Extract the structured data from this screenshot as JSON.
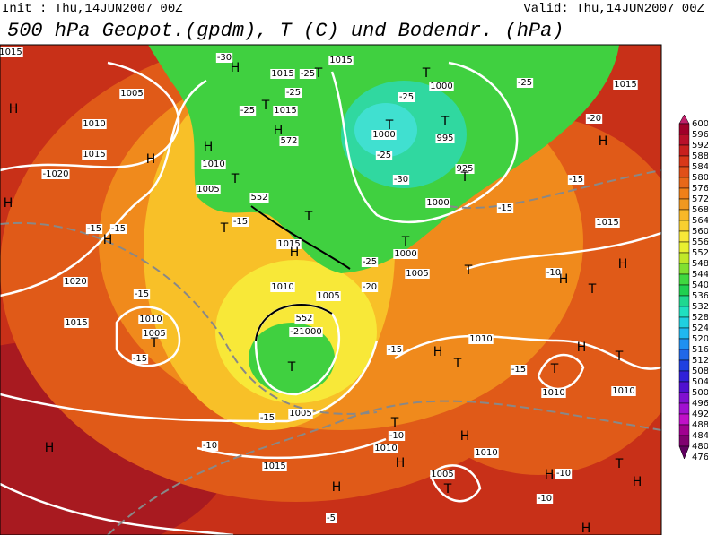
{
  "header": {
    "init": "Init : Thu,14JUN2007 00Z",
    "valid": "Valid: Thu,14JUN2007 00Z",
    "title": "500 hPa Geopot.(gpdm), T (C) und Bodendr. (hPa)"
  },
  "colorbar": {
    "levels": [
      600,
      596,
      592,
      588,
      584,
      580,
      576,
      572,
      568,
      564,
      560,
      556,
      552,
      548,
      544,
      540,
      536,
      532,
      528,
      524,
      520,
      516,
      512,
      508,
      504,
      500,
      496,
      492,
      488,
      484,
      480,
      476
    ],
    "colors": [
      "#c0206a",
      "#a0002a",
      "#b8102a",
      "#c8201e",
      "#d83818",
      "#e05018",
      "#e86818",
      "#f08018",
      "#f09820",
      "#f8b828",
      "#f8d030",
      "#f8e838",
      "#e8f030",
      "#c0e828",
      "#80e030",
      "#40d840",
      "#20d050",
      "#20d890",
      "#20e0c0",
      "#20d0e0",
      "#20b8f0",
      "#2090f0",
      "#2068e8",
      "#2040e0",
      "#3020d8",
      "#5010d0",
      "#8010d0",
      "#a010d0",
      "#c010c8",
      "#a00090",
      "#800070",
      "#600060"
    ]
  },
  "map_labels": [
    "1015",
    "H",
    "1005",
    "1010",
    "1015",
    "H",
    "-1020",
    "H",
    "-15",
    "-15",
    "H",
    "1020",
    "-15",
    "1015",
    "1010",
    "1005",
    "T",
    "-15",
    "-30",
    "H",
    "1015",
    "-25",
    "T",
    "1015",
    "T",
    "1000",
    "-25",
    "1015",
    "-25",
    "T",
    "-25",
    "1015",
    "-25",
    "T",
    "T",
    "1000",
    "995",
    "H",
    "572",
    "H",
    "1010",
    "-25",
    "-20",
    "H",
    "1005",
    "T",
    "552",
    "-30",
    "925",
    "T",
    "-15",
    "1000",
    "-15",
    "-15",
    "T",
    "T",
    "1015",
    "H",
    "T",
    "1000",
    "1015",
    "-25",
    "1005",
    "T",
    "-10",
    "H",
    "H",
    "1010",
    "-20",
    "1005",
    "T",
    "552",
    "-21000",
    "T",
    "1010",
    "-15",
    "H",
    "T",
    "-15",
    "T",
    "H",
    "T",
    "1010",
    "1010",
    "-15",
    "1005",
    "T",
    "-10",
    "H",
    "1010",
    "1010",
    "H",
    "-10",
    "1015",
    "H",
    "1005",
    "T",
    "H",
    "-10",
    "T",
    "H",
    "H",
    "-10",
    "-5",
    "H"
  ]
}
